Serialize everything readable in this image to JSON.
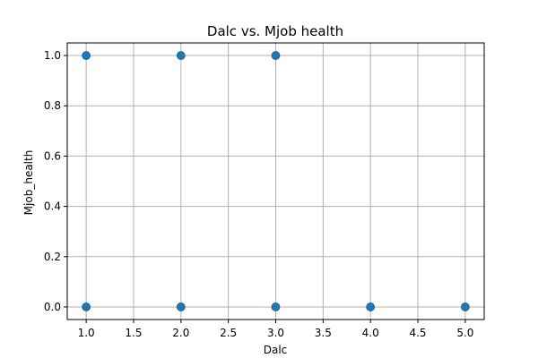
{
  "chart_data": {
    "type": "scatter",
    "title": "Dalc vs. Mjob health",
    "xlabel": "Dalc",
    "ylabel": "Mjob_health",
    "xlim": [
      0.8,
      5.2
    ],
    "ylim": [
      -0.05,
      1.05
    ],
    "xticks": [
      1.0,
      1.5,
      2.0,
      2.5,
      3.0,
      3.5,
      4.0,
      4.5,
      5.0
    ],
    "xtick_labels": [
      "1.0",
      "1.5",
      "2.0",
      "2.5",
      "3.0",
      "3.5",
      "4.0",
      "4.5",
      "5.0"
    ],
    "yticks": [
      0.0,
      0.2,
      0.4,
      0.6,
      0.8,
      1.0
    ],
    "ytick_labels": [
      "0.0",
      "0.2",
      "0.4",
      "0.6",
      "0.8",
      "1.0"
    ],
    "grid": true,
    "marker_color": "#1f77b4",
    "points": [
      {
        "x": 1,
        "y": 1
      },
      {
        "x": 2,
        "y": 1
      },
      {
        "x": 3,
        "y": 1
      },
      {
        "x": 1,
        "y": 0
      },
      {
        "x": 2,
        "y": 0
      },
      {
        "x": 3,
        "y": 0
      },
      {
        "x": 4,
        "y": 0
      },
      {
        "x": 5,
        "y": 0
      }
    ]
  }
}
